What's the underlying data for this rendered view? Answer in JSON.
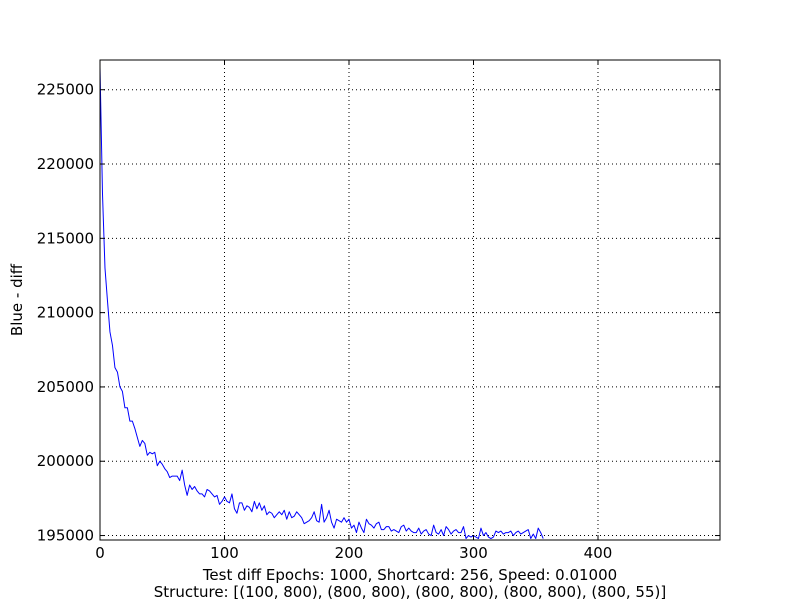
{
  "chart_data": {
    "type": "line",
    "title": "",
    "xlabel_lines": [
      "Test diff Epochs: 1000, Shortcard: 256, Speed: 0.01000",
      "Structure: [(100, 800), (800, 800), (800, 800), (800, 800), (800, 55)]"
    ],
    "ylabel": "Blue - diff",
    "xlim": [
      0,
      498
    ],
    "ylim": [
      194700,
      227000
    ],
    "x_ticks": [
      0,
      100,
      200,
      300,
      400
    ],
    "y_ticks": [
      195000,
      200000,
      205000,
      210000,
      215000,
      220000,
      225000
    ],
    "grid": true,
    "line_color": "#0000ff",
    "series": [
      {
        "x_start": 0,
        "x_step": 2,
        "values": [
          226500,
          218000,
          213000,
          210800,
          208700,
          207800,
          206300,
          206000,
          205000,
          204700,
          203600,
          203600,
          202700,
          202700,
          202200,
          201600,
          201000,
          201400,
          201200,
          200400,
          200600,
          200500,
          200600,
          199700,
          200000,
          199800,
          199500,
          199300,
          198900,
          199000,
          199000,
          199000,
          198700,
          199400,
          198400,
          197700,
          198400,
          198100,
          198300,
          198000,
          197800,
          197800,
          197600,
          198100,
          198000,
          197800,
          197600,
          197700,
          197100,
          197300,
          197600,
          197300,
          197200,
          197800,
          196800,
          196500,
          197200,
          197200,
          196700,
          197000,
          196900,
          196600,
          197300,
          196800,
          197200,
          196700,
          197000,
          196400,
          196600,
          196500,
          196200,
          196400,
          196600,
          196400,
          196700,
          196100,
          196600,
          196200,
          196300,
          196600,
          196400,
          196200,
          195800,
          195900,
          196000,
          196200,
          196600,
          196000,
          195900,
          197100,
          195900,
          196200,
          196700,
          195900,
          195500,
          196100,
          196000,
          195900,
          196200,
          195900,
          196100,
          195500,
          195700,
          195200,
          195900,
          195500,
          195200,
          196100,
          195800,
          195700,
          195500,
          195800,
          195900,
          195400,
          195400,
          195600,
          195600,
          195300,
          195400,
          195300,
          195200,
          195600,
          195700,
          195300,
          195500,
          195300,
          195200,
          195200,
          195500,
          195100,
          195300,
          195400,
          195100,
          195000,
          195700,
          195200,
          195100,
          195400,
          195000,
          195600,
          195400,
          195100,
          195300,
          195400,
          195200,
          195200,
          195600,
          194800,
          195000,
          194900,
          195000,
          194900,
          194800,
          195500,
          195000,
          195200,
          194900,
          194800,
          194900,
          195300,
          195200,
          195300,
          195100,
          195200,
          195200,
          195300,
          195000,
          195200,
          195300,
          195100,
          195200,
          195300,
          195400,
          194800,
          195100,
          194800,
          195500,
          195200,
          194800
        ]
      }
    ]
  }
}
